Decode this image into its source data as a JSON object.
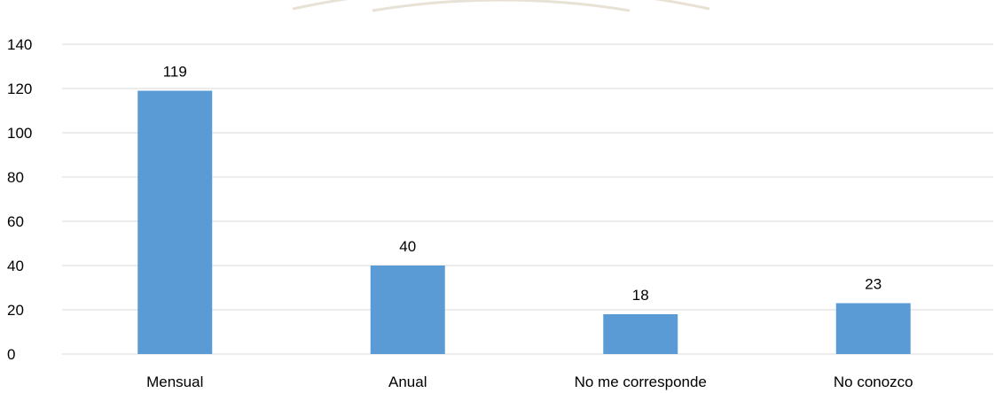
{
  "chart_data": {
    "type": "bar",
    "categories": [
      "Mensual",
      "Anual",
      "No me corresponde",
      "No conozco"
    ],
    "values": [
      119,
      40,
      18,
      23
    ],
    "data_labels": [
      "119",
      "40",
      "18",
      "23"
    ],
    "title": "",
    "xlabel": "",
    "ylabel": "",
    "ylim": [
      0,
      140
    ],
    "yticks": [
      0,
      20,
      40,
      60,
      80,
      100,
      120,
      140
    ],
    "ytick_labels": [
      "0",
      "20",
      "40",
      "60",
      "80",
      "100",
      "120",
      "140"
    ],
    "grid": "horizontal",
    "legend": "none",
    "bar_color": "#5b9bd5"
  }
}
